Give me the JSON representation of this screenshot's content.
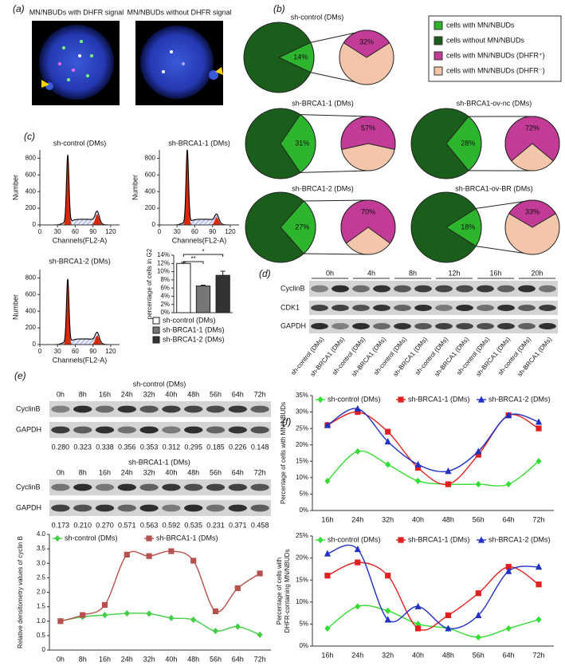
{
  "panel_labels": [
    "(a)",
    "(b)",
    "(c)",
    "(d)",
    "(e)",
    "(f)"
  ],
  "micrographs": {
    "titles": [
      "MN/NBUDs with DHFR signal",
      "MN/NBUDs without DHFR signal"
    ]
  },
  "pie_legend": [
    {
      "label": "cells with MN/NBUDs",
      "color": "#2db52d"
    },
    {
      "label": "cells without MN/NBUDs",
      "color": "#1b5e1b"
    },
    {
      "label": "cells with MN/NBUDs (DHFR⁺)",
      "color": "#c23b96"
    },
    {
      "label": "cells with MN/NBUDs (DHFR⁻)",
      "color": "#f3c5aa"
    }
  ],
  "blot_d": {
    "times": [
      "0h",
      "4h",
      "8h",
      "12h",
      "16h",
      "20h"
    ],
    "rows": [
      "CyclinB",
      "CDK1",
      "GAPDH"
    ],
    "lanes": [
      "sh-control (DMs)",
      "sh-BRCA1 (DMs)",
      "sh-control (DMs)",
      "sh-BRCA1 (DMs)",
      "sh-control (DMs)",
      "sh-BRCA1 (DMs)",
      "sh-control (DMs)",
      "sh-BRCA1 (DMs)",
      "sh-control (DMs)",
      "sh-BRCA1 (DMs)",
      "sh-control (DMs)",
      "sh-BRCA1 (DMs)"
    ]
  },
  "blots_e": [
    {
      "title": "sh-control (DMs)",
      "times": [
        "0h",
        "8h",
        "16h",
        "24h",
        "32h",
        "40h",
        "48h",
        "56h",
        "64h",
        "72h"
      ],
      "rows": [
        "CyclinB",
        "GAPDH"
      ],
      "densitometry": [
        "0.280",
        "0.323",
        "0.338",
        "0.356",
        "0.353",
        "0.312",
        "0.295",
        "0.185",
        "0.226",
        "0.148"
      ]
    },
    {
      "title": "sh-BRCA1-1 (DMs)",
      "times": [
        "0h",
        "8h",
        "16h",
        "24h",
        "32h",
        "40h",
        "48h",
        "56h",
        "64h",
        "72h"
      ],
      "rows": [
        "CyclinB",
        "GAPDH"
      ],
      "densitometry": [
        "0.173",
        "0.210",
        "0.270",
        "0.571",
        "0.563",
        "0.592",
        "0.535",
        "0.231",
        "0.371",
        "0.458"
      ]
    }
  ],
  "chart_data": [
    {
      "type": "pie",
      "title": "sh-control (DMs)",
      "values": [
        14,
        32
      ],
      "value_labels": [
        "14%",
        "32%"
      ]
    },
    {
      "type": "pie",
      "title": "sh-BRCA1-1 (DMs)",
      "values": [
        31,
        57
      ],
      "value_labels": [
        "31%",
        "57%"
      ]
    },
    {
      "type": "pie",
      "title": "sh-BRCA1-ov-nc (DMs)",
      "values": [
        28,
        72
      ],
      "value_labels": [
        "28%",
        "72%"
      ]
    },
    {
      "type": "pie",
      "title": "sh-BRCA1-2 (DMs)",
      "values": [
        27,
        70
      ],
      "value_labels": [
        "27%",
        "70%"
      ]
    },
    {
      "type": "pie",
      "title": "sh-BRCA1-ov-BR (DMs)",
      "values": [
        18,
        33
      ],
      "value_labels": [
        "18%",
        "33%"
      ]
    },
    {
      "type": "flow",
      "title": "sh-control (DMs)",
      "xlabel": "Channels(FL2-A)",
      "ylabel": "Number",
      "xlim": [
        0,
        135
      ],
      "xticks": [
        0,
        30,
        60,
        90,
        120
      ],
      "ylim": [
        0,
        900
      ],
      "yticks": [
        0,
        200,
        400,
        600,
        800
      ]
    },
    {
      "type": "flow",
      "title": "sh-BRCA1-1 (DMs)",
      "xlabel": "Channels(FL2-A)",
      "ylabel": "Number",
      "xlim": [
        0,
        135
      ],
      "xticks": [
        0,
        30,
        60,
        90,
        120
      ],
      "ylim": [
        0,
        900
      ],
      "yticks": [
        0,
        200,
        400,
        600,
        800
      ]
    },
    {
      "type": "flow",
      "title": "sh-BRCA1-2 (DMs)",
      "xlabel": "Channels(FL2-A)",
      "ylabel": "Number",
      "xlim": [
        0,
        135
      ],
      "xticks": [
        0,
        30,
        60,
        90,
        120
      ],
      "ylim": [
        0,
        900
      ],
      "yticks": [
        0,
        200,
        400,
        600,
        800
      ]
    },
    {
      "type": "bar",
      "ylabel": "percentage of cells in G2",
      "categories": [
        "sh-control (DMs)",
        "sh-BRCA1-1 (DMs)",
        "sh-BRCA1-2 (DMs)"
      ],
      "values": [
        12,
        6.5,
        9.1
      ],
      "errors": [
        0.3,
        0.2,
        1
      ],
      "colors": [
        "#ffffff",
        "#777777",
        "#333333"
      ],
      "significance": [
        "**",
        "*"
      ],
      "ylim": [
        0,
        14
      ],
      "yticks": [
        {
          "value": 0,
          "label": "0%"
        },
        {
          "value": 2,
          "label": "2%"
        },
        {
          "value": 4,
          "label": "4%"
        },
        {
          "value": 6,
          "label": "6%"
        },
        {
          "value": 8,
          "label": "8%"
        },
        {
          "value": 10,
          "label": "10%"
        },
        {
          "value": 12,
          "label": "12%"
        },
        {
          "value": 14,
          "label": "14%"
        }
      ]
    },
    {
      "type": "line",
      "ylabel": "Relative densitometry values of cyclin B",
      "categories": [
        "0h",
        "8h",
        "16h",
        "24h",
        "32h",
        "40h",
        "48h",
        "56h",
        "64h",
        "72h"
      ],
      "series": [
        {
          "name": "sh-control (DMs)",
          "color": "#44cc44",
          "marker": "diamond",
          "values": [
            1.0,
            1.15,
            1.21,
            1.27,
            1.26,
            1.11,
            1.05,
            0.66,
            0.81,
            0.53
          ]
        },
        {
          "name": "sh-BRCA1-1 (DMs)",
          "color": "#b5524d",
          "marker": "square",
          "values": [
            1.0,
            1.21,
            1.56,
            3.3,
            3.25,
            3.42,
            3.09,
            1.34,
            2.14,
            2.65
          ]
        }
      ],
      "ylim": [
        0,
        4
      ],
      "yticks": [
        0,
        0.5,
        {
          "value": 1,
          "label": "1.0"
        },
        1.5,
        {
          "value": 2,
          "label": "2.0"
        },
        2.5,
        {
          "value": 3,
          "label": "3.0"
        },
        3.5,
        {
          "value": 4,
          "label": "4.0"
        }
      ]
    },
    {
      "type": "line",
      "ylabel": "Percentage of cells with MN/NBUDs",
      "categories": [
        "16h",
        "24h",
        "32h",
        "40h",
        "48h",
        "56h",
        "64h",
        "72h"
      ],
      "series": [
        {
          "name": "sh-control (DMs)",
          "color": "#33dd33",
          "marker": "diamond",
          "values": [
            9,
            18,
            14,
            9,
            8,
            8,
            8,
            15
          ]
        },
        {
          "name": "sh-BRCA1-1 (DMs)",
          "color": "#e02020",
          "marker": "square",
          "values": [
            26,
            30,
            24,
            13,
            8,
            17,
            29,
            25
          ]
        },
        {
          "name": "sh-BRCA1-2 (DMs)",
          "color": "#2030c0",
          "marker": "triangle",
          "values": [
            26,
            31,
            21,
            14,
            12,
            18,
            29,
            27
          ]
        }
      ],
      "ylim": [
        0,
        35
      ],
      "yticks": [
        {
          "value": 0,
          "label": "0%"
        },
        {
          "value": 5,
          "label": "5%"
        },
        {
          "value": 10,
          "label": "10%"
        },
        {
          "value": 15,
          "label": "15%"
        },
        {
          "value": 20,
          "label": "20%"
        },
        {
          "value": 25,
          "label": "25%"
        },
        {
          "value": 30,
          "label": "30%"
        },
        {
          "value": 35,
          "label": "35%"
        }
      ]
    },
    {
      "type": "line",
      "ylabel": [
        "Percentage of cells with",
        "DHFR-containing MN/NBUDs"
      ],
      "categories": [
        "16h",
        "24h",
        "32h",
        "40h",
        "48h",
        "56h",
        "64h",
        "72h"
      ],
      "series": [
        {
          "name": "sh-control (DMs)",
          "color": "#33dd33",
          "marker": "diamond",
          "values": [
            4,
            9,
            8,
            5,
            4,
            2,
            4,
            6
          ]
        },
        {
          "name": "sh-BRCA1-1 (DMs)",
          "color": "#e02020",
          "marker": "square",
          "values": [
            16,
            19,
            16,
            4,
            7,
            12,
            18,
            14
          ]
        },
        {
          "name": "sh-BRCA1-2 (DMs)",
          "color": "#2030c0",
          "marker": "triangle",
          "values": [
            21,
            22,
            6,
            9,
            4,
            7,
            17,
            18
          ]
        }
      ],
      "ylim": [
        0,
        25
      ],
      "yticks": [
        {
          "value": 0,
          "label": "0%"
        },
        {
          "value": 5,
          "label": "5%"
        },
        {
          "value": 10,
          "label": "10%"
        },
        {
          "value": 15,
          "label": "15%"
        },
        {
          "value": 20,
          "label": "20%"
        },
        {
          "value": 25,
          "label": "25%"
        }
      ]
    }
  ]
}
